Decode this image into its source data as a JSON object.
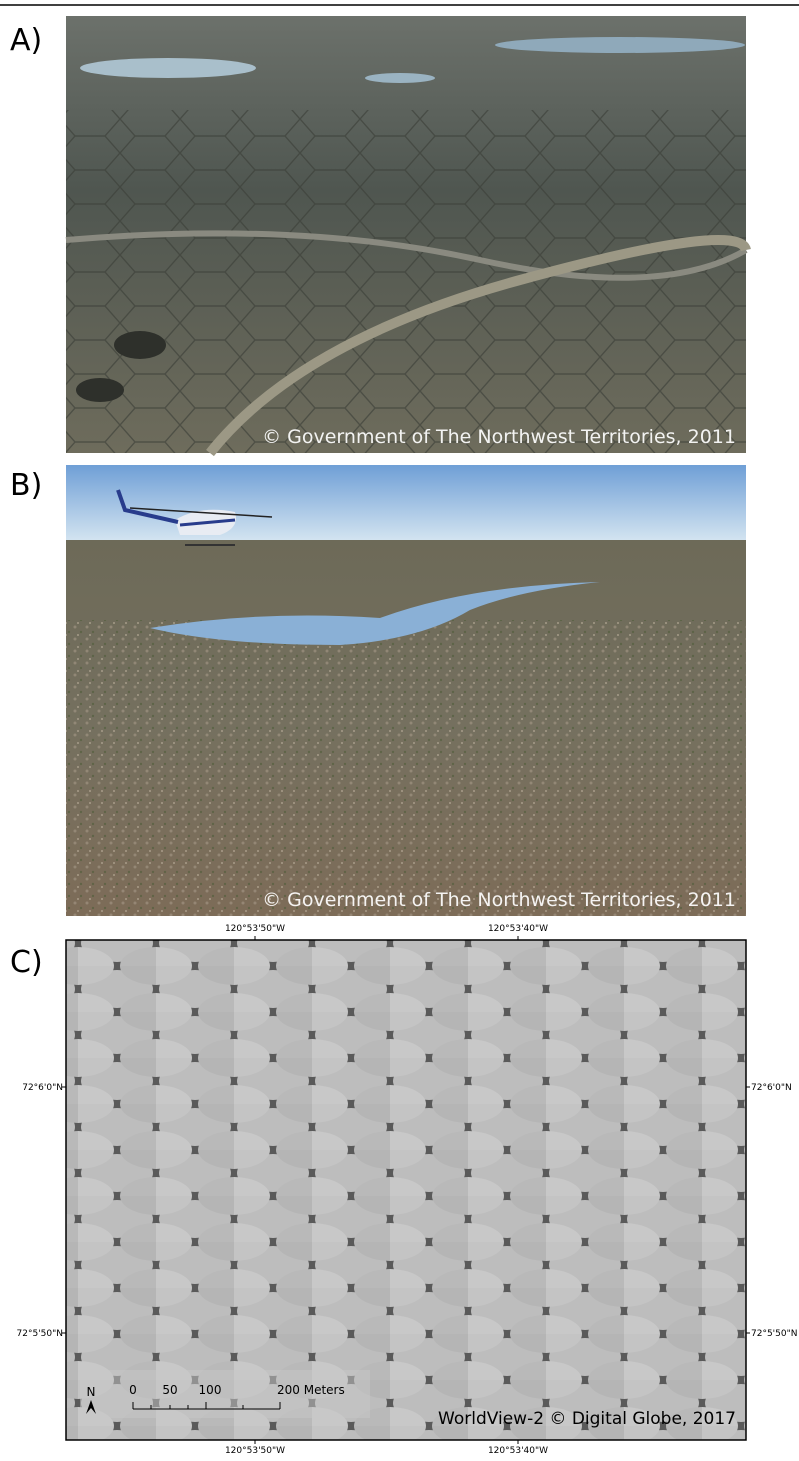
{
  "panels": [
    {
      "label": "A)",
      "credit": "© Government of The Northwest Territories, 2011"
    },
    {
      "label": "B)",
      "credit": "© Government of The Northwest Territories, 2011"
    },
    {
      "label": "C)",
      "credit": "WorldView-2 © Digital Globe, 2017",
      "map": {
        "top_ticks": [
          "120°53'50\"W",
          "120°53'40\"W"
        ],
        "bottom_ticks": [
          "120°53'50\"W",
          "120°53'40\"W"
        ],
        "left_ticks": [
          "72°6'0\"N",
          "72°5'50\"N"
        ],
        "right_ticks": [
          "72°6'0\"N",
          "72°5'50\"N"
        ],
        "north": "N",
        "scale_labels": [
          "0",
          "50",
          "100",
          "200 Meters"
        ]
      }
    }
  ]
}
